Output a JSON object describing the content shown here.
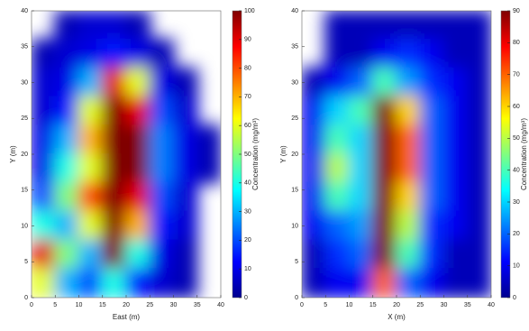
{
  "chart_data": [
    {
      "type": "heatmap",
      "x_label": "East (m)",
      "y_label": "Y (m)",
      "colorbar_label": "Concentration (mg/m³)",
      "x": [
        2.5,
        7.5,
        12.5,
        17.5,
        22.5,
        27.5,
        32.5,
        37.5
      ],
      "y": [
        38,
        34,
        30,
        26,
        22,
        18,
        14,
        10,
        6,
        2
      ],
      "values": [
        [
          null,
          5,
          8,
          8,
          5,
          null,
          null,
          null
        ],
        [
          5,
          8,
          10,
          15,
          10,
          5,
          null,
          null
        ],
        [
          8,
          10,
          30,
          90,
          60,
          10,
          5,
          null
        ],
        [
          8,
          15,
          60,
          100,
          90,
          20,
          8,
          null
        ],
        [
          10,
          30,
          70,
          100,
          100,
          25,
          10,
          5
        ],
        [
          10,
          40,
          60,
          100,
          100,
          25,
          10,
          5
        ],
        [
          20,
          50,
          80,
          100,
          90,
          20,
          8,
          null
        ],
        [
          40,
          30,
          60,
          100,
          70,
          15,
          8,
          null
        ],
        [
          90,
          50,
          30,
          100,
          40,
          10,
          5,
          null
        ],
        [
          60,
          30,
          20,
          40,
          15,
          8,
          5,
          null
        ]
      ],
      "xlim": [
        0,
        40
      ],
      "ylim": [
        0,
        40
      ],
      "clim": [
        0,
        100
      ],
      "xticks": [
        0,
        5,
        10,
        15,
        20,
        25,
        30,
        35,
        40
      ],
      "yticks": [
        0,
        5,
        10,
        15,
        20,
        25,
        30,
        35,
        40
      ],
      "cticks": [
        0,
        10,
        20,
        30,
        40,
        50,
        60,
        70,
        80,
        90,
        100
      ]
    },
    {
      "type": "heatmap",
      "x_label": "X (m)",
      "y_label": "Y (m)",
      "colorbar_label": "Concentration (mg/m³)",
      "x": [
        2.5,
        7.5,
        12.5,
        17.5,
        22.5,
        27.5,
        32.5,
        37.5
      ],
      "y": [
        38,
        34,
        30,
        26,
        22,
        18,
        14,
        10,
        6,
        2
      ],
      "values": [
        [
          null,
          5,
          5,
          5,
          5,
          5,
          5,
          5
        ],
        [
          null,
          5,
          5,
          10,
          15,
          10,
          5,
          5
        ],
        [
          5,
          10,
          20,
          40,
          25,
          15,
          10,
          5
        ],
        [
          10,
          30,
          40,
          90,
          60,
          20,
          10,
          5
        ],
        [
          10,
          40,
          30,
          90,
          70,
          20,
          10,
          5
        ],
        [
          10,
          50,
          30,
          90,
          70,
          20,
          10,
          5
        ],
        [
          10,
          40,
          30,
          90,
          60,
          20,
          10,
          5
        ],
        [
          10,
          20,
          25,
          90,
          50,
          15,
          10,
          5
        ],
        [
          5,
          15,
          20,
          90,
          40,
          15,
          5,
          5
        ],
        [
          5,
          10,
          10,
          70,
          20,
          10,
          5,
          5
        ]
      ],
      "xlim": [
        0,
        40
      ],
      "ylim": [
        0,
        40
      ],
      "clim": [
        0,
        90
      ],
      "xticks": [
        0,
        5,
        10,
        15,
        20,
        25,
        30,
        35,
        40
      ],
      "yticks": [
        0,
        5,
        10,
        15,
        20,
        25,
        30,
        35,
        40
      ],
      "cticks": [
        0,
        10,
        20,
        30,
        40,
        50,
        60,
        70,
        80,
        90
      ]
    }
  ]
}
